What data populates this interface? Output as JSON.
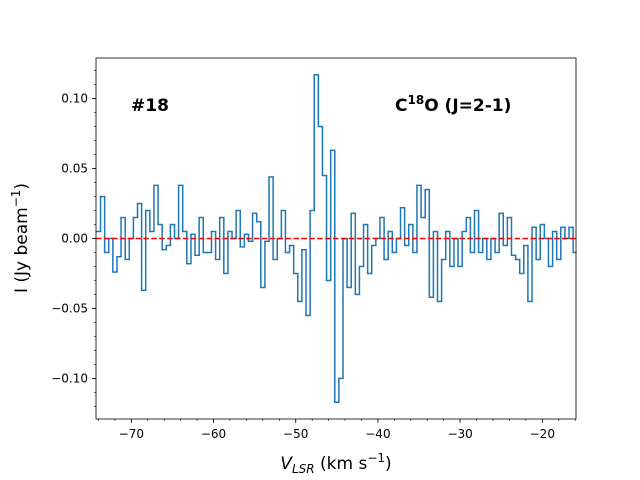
{
  "chart_data": {
    "type": "step",
    "annotations": [
      {
        "parts": [
          "#18"
        ]
      },
      {
        "parts": [
          "C",
          "18",
          "O (J=2-1)"
        ]
      }
    ],
    "xlabel": {
      "parts": [
        "V",
        "LSR",
        " (km s",
        "−1",
        ")"
      ]
    },
    "ylabel": {
      "parts": [
        "I (Jy beam",
        "−1",
        ")"
      ]
    },
    "x": [
      -74,
      -73.5,
      -73,
      -72.5,
      -72,
      -71.5,
      -71,
      -70.5,
      -70,
      -69.5,
      -69,
      -68.5,
      -68,
      -67.5,
      -67,
      -66.5,
      -66,
      -65.5,
      -65,
      -64.5,
      -64,
      -63.5,
      -63,
      -62.5,
      -62,
      -61.5,
      -61,
      -60.5,
      -60,
      -59.5,
      -59,
      -58.5,
      -58,
      -57.5,
      -57,
      -56.5,
      -56,
      -55.5,
      -55,
      -54.5,
      -54,
      -53.5,
      -53,
      -52.5,
      -52,
      -51.5,
      -51,
      -50.5,
      -50,
      -49.5,
      -49,
      -48.5,
      -48,
      -47.5,
      -47,
      -46.5,
      -46,
      -45.5,
      -45,
      -44.5,
      -44,
      -43.5,
      -43,
      -42.5,
      -42,
      -41.5,
      -41,
      -40.5,
      -40,
      -39.5,
      -39,
      -38.5,
      -38,
      -37.5,
      -37,
      -36.5,
      -36,
      -35.5,
      -35,
      -34.5,
      -34,
      -33.5,
      -33,
      -32.5,
      -32,
      -31.5,
      -31,
      -30.5,
      -30,
      -29.5,
      -29,
      -28.5,
      -28,
      -27.5,
      -27,
      -26.5,
      -26,
      -25.5,
      -25,
      -24.5,
      -24,
      -23.5,
      -23,
      -22.5,
      -22,
      -21.5,
      -21,
      -20.5,
      -20,
      -19.5,
      -19,
      -18.5,
      -18,
      -17.5,
      -17,
      -16.5,
      -16
    ],
    "series": [
      {
        "color": "#1f77b4",
        "values": [
          0.005,
          0.03,
          -0.01,
          0.0,
          -0.024,
          -0.013,
          0.015,
          -0.015,
          0.0,
          0.015,
          0.025,
          -0.037,
          0.02,
          0.005,
          0.038,
          0.01,
          -0.008,
          -0.005,
          0.01,
          0.0,
          0.038,
          0.005,
          -0.018,
          0.003,
          -0.012,
          0.015,
          -0.01,
          -0.01,
          0.005,
          -0.015,
          0.015,
          -0.025,
          0.005,
          0.0,
          0.02,
          -0.006,
          0.003,
          -0.002,
          0.018,
          0.012,
          -0.035,
          -0.002,
          0.044,
          -0.015,
          0.0,
          0.02,
          -0.01,
          -0.005,
          -0.025,
          -0.045,
          -0.008,
          -0.055,
          0.02,
          0.117,
          0.08,
          0.045,
          -0.03,
          0.063,
          -0.117,
          -0.1,
          0.0,
          -0.035,
          0.018,
          -0.04,
          -0.02,
          0.01,
          -0.025,
          -0.005,
          0.0,
          0.015,
          -0.015,
          0.005,
          -0.01,
          0.0,
          0.022,
          -0.005,
          0.01,
          -0.01,
          0.038,
          0.015,
          0.035,
          -0.042,
          0.005,
          -0.045,
          -0.015,
          0.005,
          -0.02,
          0.0,
          -0.02,
          0.005,
          0.015,
          -0.01,
          0.02,
          -0.01,
          0.0,
          -0.015,
          0.0,
          -0.01,
          0.018,
          -0.005,
          0.015,
          -0.012,
          -0.015,
          -0.025,
          -0.005,
          -0.045,
          0.008,
          -0.015,
          0.01,
          0.0,
          -0.02,
          0.005,
          -0.015,
          0.008,
          0.0,
          0.008,
          -0.01
        ]
      }
    ],
    "hline": {
      "value": 0,
      "color": "#ff0000"
    },
    "xlim": [
      -74.3,
      -15.9
    ],
    "ylim": [
      -0.129,
      0.129
    ],
    "xticks": [
      {
        "value": -70,
        "label": "−70"
      },
      {
        "value": -60,
        "label": "−60"
      },
      {
        "value": -50,
        "label": "−50"
      },
      {
        "value": -40,
        "label": "−40"
      },
      {
        "value": -30,
        "label": "−30"
      },
      {
        "value": -20,
        "label": "−20"
      }
    ],
    "yticks": [
      {
        "value": -0.1,
        "label": "−0.10"
      },
      {
        "value": -0.05,
        "label": "−0.05"
      },
      {
        "value": 0,
        "label": "0.00"
      },
      {
        "value": 0.05,
        "label": "0.05"
      },
      {
        "value": 0.1,
        "label": "0.10"
      }
    ],
    "xminor_step": 2,
    "yminor_step": 0.01
  }
}
